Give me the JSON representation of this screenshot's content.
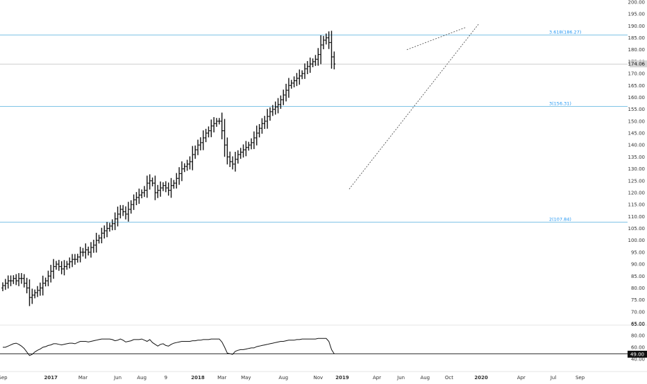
{
  "chart_data": {
    "type": "ohlc",
    "price_axis": {
      "ticks": [
        "200.00",
        "195.00",
        "190.00",
        "185.00",
        "180.00",
        "175.00",
        "170.00",
        "165.00",
        "160.00",
        "155.00",
        "150.00",
        "145.00",
        "140.00",
        "135.00",
        "130.00",
        "125.00",
        "120.00",
        "115.00",
        "110.00",
        "105.00",
        "100.00",
        "95.00",
        "90.00",
        "85.00",
        "80.00",
        "75.00",
        "70.00",
        "65.00"
      ],
      "ylim": [
        65,
        200
      ],
      "last_price": "174.06"
    },
    "rsi_axis": {
      "ticks": [
        "80.00",
        "60.00",
        "40.00"
      ],
      "ylim": [
        40,
        80
      ],
      "last_value": "49.00"
    },
    "time_axis": {
      "labels": [
        "Sep",
        "2017",
        "Mar",
        "Jun",
        "Aug",
        "9",
        "2018",
        "Mar",
        "May",
        "Aug",
        "Nov",
        "2019",
        "Apr",
        "Jun",
        "Aug",
        "Oct",
        "2020",
        "Apr",
        "Jul",
        "Sep"
      ],
      "label_bars": [
        0,
        18,
        30,
        43,
        52,
        61,
        73,
        82,
        91,
        105,
        118,
        127,
        140,
        149,
        158,
        167,
        179,
        194,
        206,
        216
      ]
    },
    "horizontal_levels": [
      {
        "label": "3.618(186.27)",
        "value": 186.27
      },
      {
        "label": "3(156.31)",
        "value": 156.31
      },
      {
        "label": "2(107.84)",
        "value": 107.84
      }
    ],
    "price_closes": [
      81,
      82,
      83,
      83,
      84,
      83,
      84,
      84,
      82,
      80,
      76,
      77,
      78,
      79,
      80,
      82,
      83,
      85,
      87,
      89,
      90,
      89,
      88,
      89,
      90,
      91,
      92,
      92,
      93,
      95,
      95,
      96,
      95,
      97,
      98,
      100,
      101,
      103,
      104,
      105,
      106,
      107,
      109,
      111,
      113,
      112,
      111,
      113,
      115,
      117,
      118,
      119,
      120,
      121,
      124,
      125,
      124,
      120,
      121,
      122,
      123,
      122,
      121,
      123,
      124,
      126,
      128,
      130,
      131,
      132,
      133,
      136,
      138,
      140,
      141,
      143,
      145,
      146,
      148,
      149,
      150,
      150,
      146,
      140,
      135,
      133,
      132,
      134,
      136,
      137,
      138,
      139,
      140,
      141,
      143,
      145,
      147,
      149,
      150,
      152,
      154,
      155,
      156,
      157,
      159,
      161,
      163,
      165,
      166,
      167,
      168,
      169,
      170,
      172,
      173,
      174,
      175,
      176,
      178,
      182,
      184,
      185,
      183,
      177,
      174
    ],
    "rsi_values": [
      60,
      60,
      62,
      64,
      66,
      67,
      65,
      62,
      58,
      52,
      46,
      48,
      52,
      55,
      57,
      60,
      61,
      63,
      64,
      66,
      66,
      65,
      64,
      65,
      66,
      67,
      67,
      66,
      68,
      70,
      70,
      70,
      69,
      70,
      71,
      72,
      73,
      74,
      74,
      74,
      74,
      73,
      71,
      72,
      74,
      72,
      69,
      70,
      71,
      73,
      73,
      73,
      74,
      72,
      70,
      73,
      68,
      65,
      62,
      65,
      66,
      63,
      62,
      65,
      67,
      68,
      69,
      70,
      70,
      70,
      70,
      71,
      71,
      72,
      72,
      73,
      73,
      73,
      74,
      74,
      74,
      74,
      69,
      60,
      50,
      49,
      48,
      53,
      55,
      56,
      56,
      57,
      58,
      59,
      59,
      61,
      62,
      63,
      64,
      65,
      66,
      67,
      68,
      69,
      70,
      70,
      71,
      72,
      72,
      72,
      73,
      73,
      74,
      74,
      74,
      74,
      74,
      74,
      75,
      75,
      75,
      75,
      70,
      56,
      49
    ],
    "trendlines": [
      {
        "from": [
          "Dec 2018",
          121.5
        ],
        "to": [
          "Sep 2019",
          191.0
        ]
      },
      {
        "from": [
          "May 2019",
          180.0
        ],
        "to": [
          "Sep 2019",
          189.5
        ]
      }
    ]
  }
}
